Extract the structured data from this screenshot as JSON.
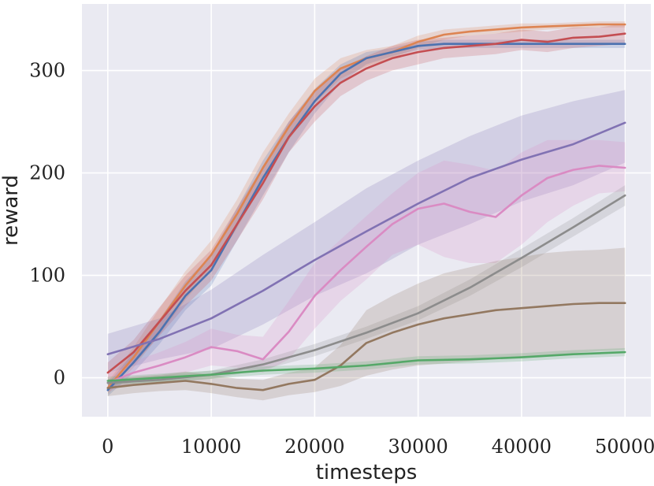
{
  "chart_data": {
    "type": "line",
    "title": "",
    "xlabel": "timesteps",
    "ylabel": "reward",
    "xlim": [
      -2500,
      52500
    ],
    "ylim": [
      -38,
      365
    ],
    "xticks": [
      0,
      10000,
      20000,
      30000,
      40000,
      50000
    ],
    "xtick_labels": [
      "0",
      "10000",
      "20000",
      "30000",
      "40000",
      "50000"
    ],
    "yticks": [
      0,
      100,
      200,
      300
    ],
    "ytick_labels": [
      "0",
      "100",
      "200",
      "300"
    ],
    "grid": true,
    "legend": "none",
    "series": [
      {
        "name": "series-orange",
        "color": "#dd8452",
        "x": [
          0,
          2500,
          5000,
          7500,
          10000,
          12500,
          15000,
          17500,
          20000,
          22500,
          25000,
          27500,
          30000,
          32500,
          35000,
          37500,
          40000,
          42500,
          45000,
          47500,
          50000
        ],
        "y": [
          -10,
          20,
          55,
          90,
          120,
          160,
          205,
          245,
          280,
          302,
          312,
          318,
          328,
          335,
          338,
          340,
          342,
          343,
          344,
          345,
          345
        ],
        "lower": [
          -16,
          10,
          42,
          76,
          106,
          146,
          190,
          232,
          268,
          292,
          304,
          312,
          322,
          330,
          334,
          336,
          338,
          340,
          341,
          342,
          342
        ],
        "upper": [
          -4,
          30,
          68,
          104,
          134,
          174,
          220,
          258,
          292,
          312,
          320,
          324,
          334,
          340,
          342,
          344,
          346,
          346,
          347,
          348,
          348
        ]
      },
      {
        "name": "series-blue",
        "color": "#4c72b0",
        "x": [
          0,
          2500,
          5000,
          7500,
          10000,
          12500,
          15000,
          17500,
          20000,
          22500,
          25000,
          27500,
          30000,
          32500,
          35000,
          37500,
          40000,
          42500,
          45000,
          47500,
          50000
        ],
        "y": [
          -12,
          15,
          45,
          80,
          105,
          150,
          195,
          235,
          270,
          297,
          312,
          318,
          324,
          326,
          326,
          326,
          326,
          326,
          326,
          326,
          326
        ],
        "lower": [
          -18,
          5,
          33,
          66,
          90,
          134,
          178,
          220,
          258,
          288,
          306,
          314,
          320,
          322,
          322,
          322,
          322,
          322,
          322,
          322,
          322
        ],
        "upper": [
          -6,
          25,
          57,
          94,
          120,
          166,
          212,
          250,
          282,
          306,
          318,
          322,
          328,
          330,
          330,
          330,
          330,
          330,
          330,
          330,
          330
        ]
      },
      {
        "name": "series-red",
        "color": "#c44e52",
        "x": [
          0,
          2500,
          5000,
          7500,
          10000,
          12500,
          15000,
          17500,
          20000,
          22500,
          25000,
          27500,
          30000,
          32500,
          35000,
          37500,
          40000,
          42500,
          45000,
          47500,
          50000
        ],
        "y": [
          5,
          25,
          55,
          85,
          110,
          150,
          190,
          235,
          265,
          288,
          302,
          312,
          318,
          322,
          324,
          326,
          330,
          328,
          332,
          333,
          336
        ],
        "lower": [
          -5,
          13,
          41,
          70,
          95,
          134,
          174,
          220,
          250,
          275,
          290,
          300,
          306,
          312,
          314,
          316,
          320,
          318,
          322,
          324,
          326
        ],
        "upper": [
          15,
          37,
          69,
          100,
          125,
          166,
          206,
          250,
          280,
          301,
          314,
          324,
          330,
          332,
          334,
          336,
          340,
          338,
          342,
          342,
          346
        ]
      },
      {
        "name": "series-purple",
        "color": "#8172b3",
        "x": [
          0,
          5000,
          10000,
          15000,
          20000,
          25000,
          30000,
          35000,
          40000,
          45000,
          50000
        ],
        "y": [
          23,
          38,
          58,
          85,
          115,
          143,
          170,
          195,
          213,
          228,
          249
        ],
        "lower": [
          5,
          18,
          28,
          52,
          80,
          102,
          130,
          150,
          172,
          188,
          210
        ],
        "upper": [
          43,
          58,
          86,
          120,
          152,
          185,
          212,
          236,
          256,
          270,
          281
        ]
      },
      {
        "name": "series-pink",
        "color": "#da8bc3",
        "x": [
          0,
          2500,
          5000,
          7500,
          10000,
          12500,
          15000,
          17500,
          20000,
          22500,
          25000,
          27500,
          30000,
          32500,
          35000,
          37500,
          40000,
          42500,
          45000,
          47500,
          50000
        ],
        "y": [
          -5,
          5,
          12,
          20,
          30,
          26,
          18,
          45,
          80,
          105,
          128,
          150,
          165,
          170,
          162,
          157,
          178,
          195,
          203,
          207,
          205
        ],
        "lower": [
          -14,
          -4,
          0,
          5,
          12,
          10,
          5,
          18,
          48,
          75,
          96,
          120,
          130,
          118,
          112,
          112,
          130,
          152,
          168,
          180,
          182
        ],
        "upper": [
          4,
          16,
          25,
          35,
          48,
          42,
          40,
          75,
          112,
          135,
          158,
          180,
          200,
          212,
          208,
          202,
          220,
          232,
          232,
          232,
          230
        ]
      },
      {
        "name": "series-gray",
        "color": "#8c8c8c",
        "x": [
          0,
          5000,
          10000,
          15000,
          20000,
          25000,
          30000,
          35000,
          40000,
          45000,
          50000
        ],
        "y": [
          -5,
          -2,
          3,
          13,
          27,
          44,
          63,
          88,
          117,
          147,
          178
        ],
        "lower": [
          -9,
          -6,
          -1,
          8,
          21,
          38,
          56,
          80,
          108,
          138,
          168
        ],
        "upper": [
          -1,
          2,
          7,
          18,
          33,
          50,
          70,
          96,
          126,
          156,
          188
        ]
      },
      {
        "name": "series-brown",
        "color": "#937860",
        "x": [
          0,
          2500,
          5000,
          7500,
          10000,
          12500,
          15000,
          17500,
          20000,
          22500,
          25000,
          27500,
          30000,
          32500,
          35000,
          37500,
          40000,
          42500,
          45000,
          47500,
          50000
        ],
        "y": [
          -10,
          -7,
          -5,
          -3,
          -6,
          -10,
          -12,
          -6,
          -2,
          12,
          34,
          44,
          52,
          58,
          62,
          66,
          68,
          70,
          72,
          73,
          73
        ],
        "lower": [
          -18,
          -15,
          -13,
          -12,
          -15,
          -19,
          -22,
          -17,
          -14,
          -8,
          2,
          8,
          12,
          14,
          16,
          18,
          20,
          22,
          24,
          26,
          27
        ],
        "upper": [
          -2,
          1,
          3,
          6,
          3,
          -1,
          -2,
          5,
          10,
          32,
          66,
          80,
          92,
          102,
          108,
          114,
          118,
          122,
          124,
          125,
          127
        ]
      },
      {
        "name": "series-green",
        "color": "#55a868",
        "x": [
          0,
          5000,
          10000,
          15000,
          20000,
          25000,
          30000,
          35000,
          40000,
          45000,
          50000
        ],
        "y": [
          -3,
          0,
          3,
          7,
          9,
          12,
          17,
          18,
          20,
          23,
          25
        ],
        "lower": [
          -7,
          -4,
          -1,
          3,
          5,
          8,
          13,
          14,
          16,
          19,
          21
        ],
        "upper": [
          1,
          4,
          7,
          11,
          13,
          16,
          21,
          22,
          24,
          27,
          29
        ]
      }
    ]
  }
}
